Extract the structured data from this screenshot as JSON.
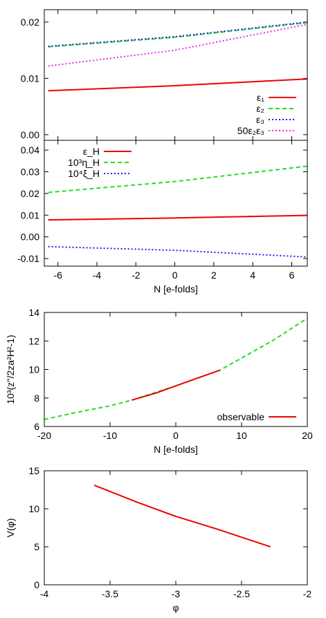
{
  "colors": {
    "red": "#ee0000",
    "green": "#22dd22",
    "blue": "#1a1aee",
    "magenta": "#ee22ee",
    "axis": "#000000"
  },
  "chart_data": [
    {
      "type": "line",
      "xlim": [
        -6.7,
        6.8
      ],
      "ylim": [
        -0.001,
        0.0222
      ],
      "yticks": [
        0.0,
        0.01,
        0.02
      ],
      "ytick_labels": [
        "0.00",
        "0.01",
        "0.02"
      ],
      "xticks": [
        -6,
        -4,
        -2,
        0,
        2,
        4,
        6
      ],
      "show_x_tick_labels": false,
      "grid": false,
      "legend_position": "bottom-right",
      "series": [
        {
          "name": "ε₁",
          "color": "#ee0000",
          "dash": "solid",
          "x": [
            -6.5,
            0,
            6.8
          ],
          "y": [
            0.0078,
            0.0087,
            0.0099
          ]
        },
        {
          "name": "ε₂",
          "color": "#22dd22",
          "dash": "dashed",
          "x": [
            -6.5,
            0,
            6.8
          ],
          "y": [
            0.0156,
            0.0173,
            0.0199
          ]
        },
        {
          "name": "ε₃",
          "color": "#1a1aee",
          "dash": "dotted",
          "x": [
            -6.5,
            0,
            6.8
          ],
          "y": [
            0.0157,
            0.0174,
            0.02
          ]
        },
        {
          "name": "50ε₂ε₃",
          "color": "#ee22ee",
          "dash": "dotted",
          "x": [
            -6.5,
            0,
            6.8
          ],
          "y": [
            0.0122,
            0.015,
            0.0196
          ]
        }
      ]
    },
    {
      "type": "line",
      "xlim": [
        -6.7,
        6.8
      ],
      "ylim": [
        -0.0135,
        0.0445
      ],
      "yticks": [
        -0.01,
        0.0,
        0.01,
        0.02,
        0.03,
        0.04
      ],
      "ytick_labels": [
        "-0.01",
        "0.00",
        "0.01",
        "0.02",
        "0.03",
        "0.04"
      ],
      "xticks": [
        -6,
        -4,
        -2,
        0,
        2,
        4,
        6
      ],
      "xtick_labels": [
        "-6",
        "-4",
        "-2",
        "0",
        "2",
        "4",
        "6"
      ],
      "xlabel": "N [e-folds]",
      "grid": false,
      "legend_position": "top-left",
      "series": [
        {
          "name": "ε_H",
          "color": "#ee0000",
          "dash": "solid",
          "x": [
            -6.5,
            0,
            6.8
          ],
          "y": [
            0.0078,
            0.0087,
            0.0099
          ]
        },
        {
          "name": "10³η_H",
          "color": "#22dd22",
          "dash": "dashed",
          "x": [
            -6.5,
            0,
            6.8
          ],
          "y": [
            0.0205,
            0.0255,
            0.0326
          ]
        },
        {
          "name": "10⁴ξ_H",
          "color": "#1a1aee",
          "dash": "dotted",
          "x": [
            -6.5,
            0,
            6.8
          ],
          "y": [
            -0.0045,
            -0.0062,
            -0.0093
          ]
        }
      ]
    },
    {
      "type": "line",
      "xlim": [
        -20,
        20
      ],
      "ylim": [
        6,
        14
      ],
      "yticks": [
        6,
        8,
        10,
        12,
        14
      ],
      "ytick_labels": [
        "6",
        "8",
        "10",
        "12",
        "14"
      ],
      "xticks": [
        -20,
        -10,
        0,
        10,
        20
      ],
      "xtick_labels": [
        "-20",
        "-10",
        "0",
        "10",
        "20"
      ],
      "xlabel": "N [e-folds]",
      "ylabel": "10³(z''/2za²H²-1)",
      "grid": false,
      "legend_position": "bottom-right",
      "series": [
        {
          "name": "",
          "color": "#22dd22",
          "dash": "dashed",
          "x": [
            -20,
            -15,
            -10,
            -6.7,
            0,
            6.7,
            10,
            15,
            20
          ],
          "y": [
            6.5,
            7.0,
            7.45,
            7.85,
            8.85,
            9.95,
            10.8,
            12.1,
            13.6
          ]
        },
        {
          "name": "observable",
          "color": "#ee0000",
          "dash": "solid",
          "x": [
            -6.7,
            -3,
            0,
            3,
            6.7
          ],
          "y": [
            7.85,
            8.35,
            8.85,
            9.35,
            9.95
          ]
        }
      ]
    },
    {
      "type": "line",
      "xlim": [
        -4,
        -2
      ],
      "ylim": [
        0,
        15
      ],
      "yticks": [
        0,
        5,
        10,
        15
      ],
      "ytick_labels": [
        "0",
        "5",
        "10",
        "15"
      ],
      "xticks": [
        -4,
        -3.5,
        -3,
        -2.5,
        -2
      ],
      "xtick_labels": [
        "-4",
        "-3.5",
        "-3",
        "-2.5",
        "-2"
      ],
      "xlabel": "φ",
      "ylabel": "V(φ)",
      "grid": false,
      "series": [
        {
          "name": "",
          "color": "#ee0000",
          "dash": "solid",
          "x": [
            -3.62,
            -3.3,
            -3.0,
            -2.7,
            -2.28
          ],
          "y": [
            13.1,
            10.9,
            9.0,
            7.4,
            5.0
          ]
        }
      ]
    }
  ]
}
